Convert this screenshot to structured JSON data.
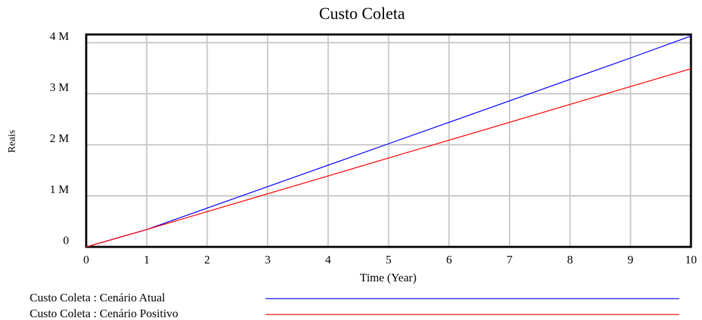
{
  "chart_data": {
    "type": "line",
    "title": "Custo Coleta",
    "x_label": "Time (Year)",
    "y_label": "Reais",
    "x": [
      0,
      1,
      2,
      3,
      4,
      5,
      6,
      7,
      8,
      9,
      10
    ],
    "series": [
      {
        "name": "Custo Coleta : Cenário Atual",
        "color": "#0000ff",
        "values": [
          0,
          340000,
          760000,
          1180000,
          1600000,
          2020000,
          2440000,
          2860000,
          3280000,
          3700000,
          4130000
        ]
      },
      {
        "name": "Custo Coleta : Cenário Positivo",
        "color": "#ff0000",
        "values": [
          0,
          340000,
          690000,
          1040000,
          1390000,
          1740000,
          2090000,
          2440000,
          2790000,
          3140000,
          3490000
        ]
      }
    ],
    "xlim": [
      0,
      10
    ],
    "xticks": [
      0,
      1,
      2,
      3,
      4,
      5,
      6,
      7,
      8,
      9,
      10
    ],
    "ylim": [
      0,
      4160000
    ],
    "yticks": [
      0,
      {
        "value": 1000000,
        "label": "1 M"
      },
      {
        "value": 2000000,
        "label": "2 M"
      },
      {
        "value": 3000000,
        "label": "3 M"
      },
      {
        "value": 4000000,
        "label": "4 M"
      }
    ],
    "grid": true
  }
}
